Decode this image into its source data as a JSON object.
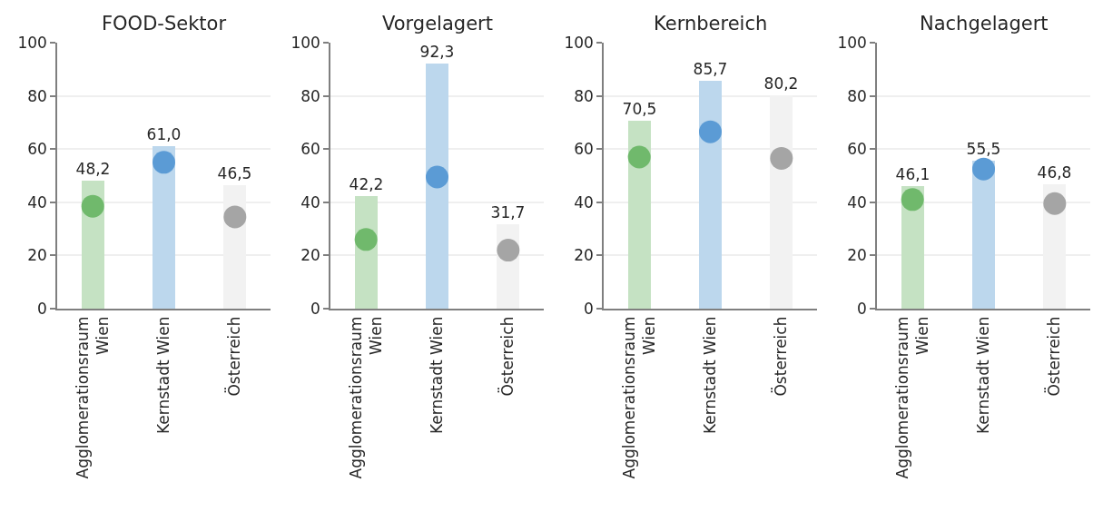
{
  "chart_data": [
    {
      "type": "bar",
      "title": "FOOD-Sektor",
      "categories": [
        "Agglomerationsraum Wien",
        "Kernstadt Wien",
        "Österreich"
      ],
      "series": [
        {
          "colors": [
            "#c5e2c3",
            "#bcd7ed",
            "#f2f2f2"
          ],
          "values": [
            48.2,
            61.0,
            46.5
          ],
          "value_labels": [
            "48,2",
            "61,0",
            "46,5"
          ]
        },
        {
          "type": "scatter",
          "colors": [
            "#70b96c",
            "#5b9bd5",
            "#a5a5a5"
          ],
          "values": [
            38.5,
            55,
            34.5
          ]
        }
      ],
      "ylim": [
        0,
        100
      ],
      "yticks": [
        0,
        20,
        40,
        60,
        80,
        100
      ],
      "grid": "y",
      "marker": "circle"
    },
    {
      "type": "bar",
      "title": "Vorgelagert",
      "categories": [
        "Agglomerationsraum Wien",
        "Kernstadt Wien",
        "Österreich"
      ],
      "series": [
        {
          "colors": [
            "#c5e2c3",
            "#bcd7ed",
            "#f2f2f2"
          ],
          "values": [
            42.2,
            92.3,
            31.7
          ],
          "value_labels": [
            "42,2",
            "92,3",
            "31,7"
          ]
        },
        {
          "type": "scatter",
          "colors": [
            "#70b96c",
            "#5b9bd5",
            "#a5a5a5"
          ],
          "values": [
            26,
            49.5,
            22
          ]
        }
      ],
      "ylim": [
        0,
        100
      ],
      "yticks": [
        0,
        20,
        40,
        60,
        80,
        100
      ],
      "grid": "y",
      "marker": "circle"
    },
    {
      "type": "bar",
      "title": "Kernbereich",
      "categories": [
        "Agglomerationsraum Wien",
        "Kernstadt Wien",
        "Österreich"
      ],
      "series": [
        {
          "colors": [
            "#c5e2c3",
            "#bcd7ed",
            "#f2f2f2"
          ],
          "values": [
            70.5,
            85.7,
            80.2
          ],
          "value_labels": [
            "70,5",
            "85,7",
            "80,2"
          ]
        },
        {
          "type": "scatter",
          "colors": [
            "#70b96c",
            "#5b9bd5",
            "#a5a5a5"
          ],
          "values": [
            57,
            66.5,
            56.5
          ]
        }
      ],
      "ylim": [
        0,
        100
      ],
      "yticks": [
        0,
        20,
        40,
        60,
        80,
        100
      ],
      "grid": "y",
      "marker": "circle"
    },
    {
      "type": "bar",
      "title": "Nachgelagert",
      "categories": [
        "Agglomerationsraum Wien",
        "Kernstadt Wien",
        "Österreich"
      ],
      "series": [
        {
          "colors": [
            "#c5e2c3",
            "#bcd7ed",
            "#f2f2f2"
          ],
          "values": [
            46.1,
            55.5,
            46.8
          ],
          "value_labels": [
            "46,1",
            "55,5",
            "46,8"
          ]
        },
        {
          "type": "scatter",
          "colors": [
            "#70b96c",
            "#5b9bd5",
            "#a5a5a5"
          ],
          "values": [
            41,
            52.5,
            39.5
          ]
        }
      ],
      "ylim": [
        0,
        100
      ],
      "yticks": [
        0,
        20,
        40,
        60,
        80,
        100
      ],
      "grid": "y",
      "marker": "circle"
    }
  ]
}
